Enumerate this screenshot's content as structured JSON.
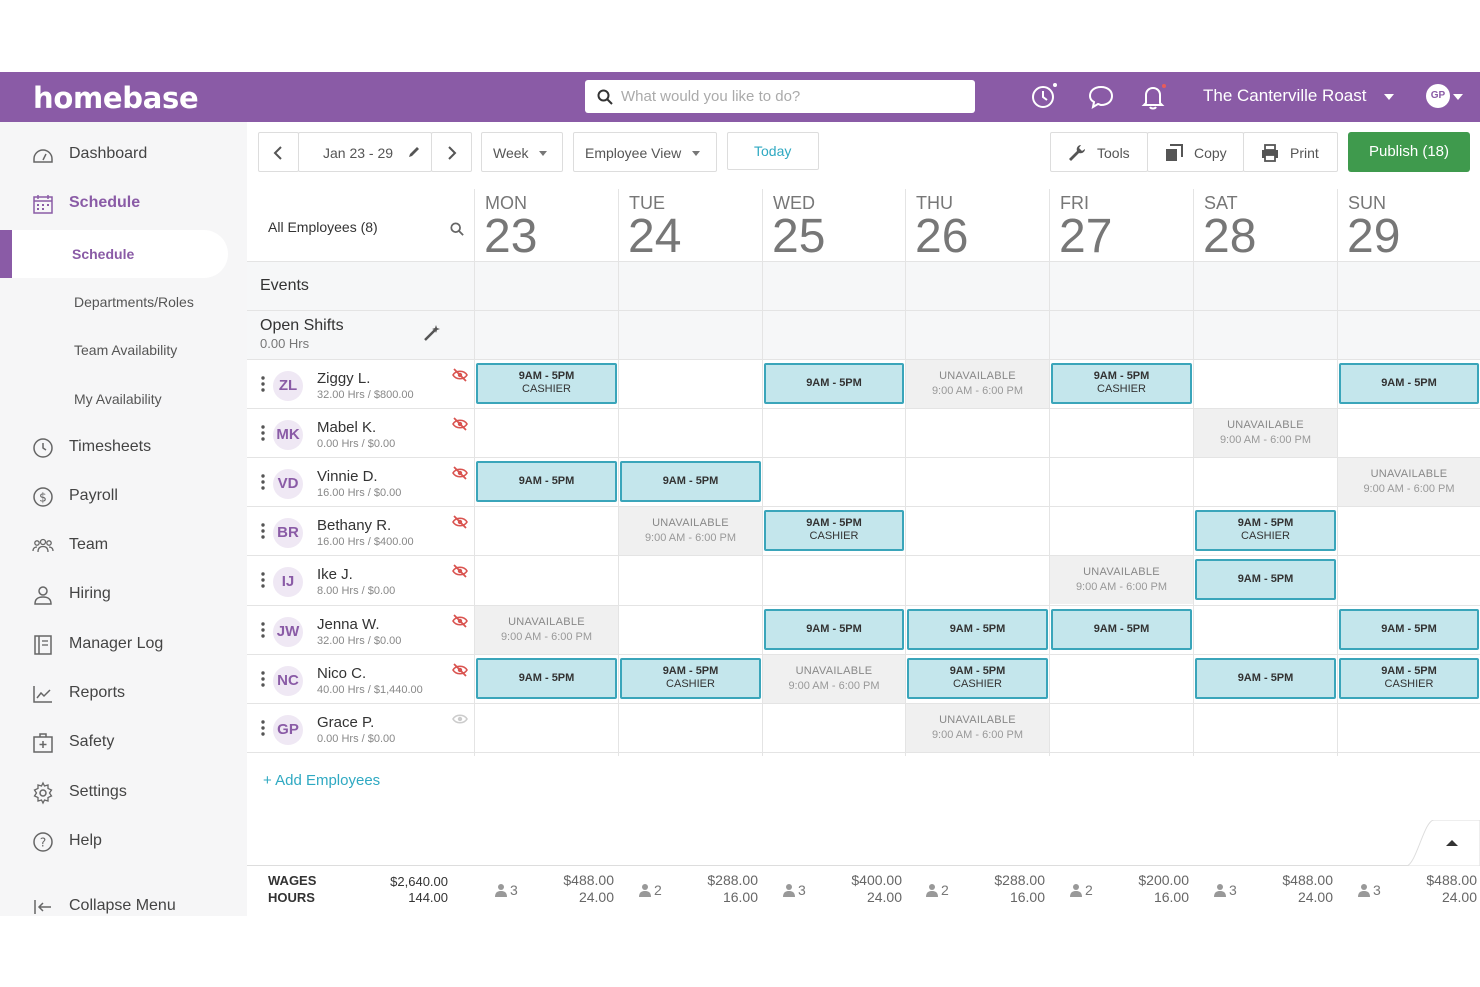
{
  "app": {
    "logo": "homebase"
  },
  "topbar": {
    "search_placeholder": "What would you like to do?",
    "location": "The Canterville Roast",
    "avatar_initials": "GP",
    "icons": [
      "clock-icon",
      "chat-icon",
      "bell-icon"
    ]
  },
  "sidebar": {
    "items": [
      {
        "label": "Dashboard",
        "icon": "dashboard-icon"
      },
      {
        "label": "Schedule",
        "icon": "calendar-icon"
      },
      {
        "label": "Timesheets",
        "icon": "clock-icon"
      },
      {
        "label": "Payroll",
        "icon": "dollar-icon"
      },
      {
        "label": "Team",
        "icon": "team-icon"
      },
      {
        "label": "Hiring",
        "icon": "person-icon"
      },
      {
        "label": "Manager Log",
        "icon": "logbook-icon"
      },
      {
        "label": "Reports",
        "icon": "chart-icon"
      },
      {
        "label": "Safety",
        "icon": "first-aid-icon"
      },
      {
        "label": "Settings",
        "icon": "gear-icon"
      },
      {
        "label": "Help",
        "icon": "help-icon"
      }
    ],
    "sub_items": [
      "Schedule",
      "Departments/Roles",
      "Team Availability",
      "My Availability"
    ],
    "collapse_label": "Collapse Menu"
  },
  "toolbar": {
    "date_range": "Jan 23 - 29",
    "period": "Week",
    "view": "Employee View",
    "today": "Today",
    "tools": "Tools",
    "copy": "Copy",
    "print": "Print",
    "publish": "Publish (18)"
  },
  "grid": {
    "all_employees": "All Employees (8)",
    "days": [
      {
        "name": "MON",
        "num": "23"
      },
      {
        "name": "TUE",
        "num": "24"
      },
      {
        "name": "WED",
        "num": "25"
      },
      {
        "name": "THU",
        "num": "26"
      },
      {
        "name": "FRI",
        "num": "27"
      },
      {
        "name": "SAT",
        "num": "28"
      },
      {
        "name": "SUN",
        "num": "29"
      }
    ],
    "events_label": "Events",
    "open_shifts_label": "Open Shifts",
    "open_shifts_hours": "0.00 Hrs",
    "employees": [
      {
        "initials": "ZL",
        "name": "Ziggy L.",
        "hours": "32.00 Hrs / $800.00",
        "visible": false
      },
      {
        "initials": "MK",
        "name": "Mabel K.",
        "hours": "0.00 Hrs / $0.00",
        "visible": false
      },
      {
        "initials": "VD",
        "name": "Vinnie D.",
        "hours": "16.00 Hrs / $0.00",
        "visible": false
      },
      {
        "initials": "BR",
        "name": "Bethany R.",
        "hours": "16.00 Hrs / $400.00",
        "visible": false
      },
      {
        "initials": "IJ",
        "name": "Ike J.",
        "hours": "8.00 Hrs / $0.00",
        "visible": false
      },
      {
        "initials": "JW",
        "name": "Jenna W.",
        "hours": "32.00 Hrs / $0.00",
        "visible": false
      },
      {
        "initials": "NC",
        "name": "Nico C.",
        "hours": "40.00 Hrs / $1,440.00",
        "visible": false
      },
      {
        "initials": "GP",
        "name": "Grace P.",
        "hours": "0.00 Hrs / $0.00",
        "visible": true
      }
    ],
    "shift_time": "9AM - 5PM",
    "shift_role": "CASHIER",
    "unavailable_label": "UNAVAILABLE",
    "unavailable_time": "9:00 AM - 6:00 PM",
    "cells": [
      [
        "shift-role",
        "",
        "shift",
        "unavail",
        "shift-role",
        "",
        "shift"
      ],
      [
        "",
        "",
        "",
        "",
        "",
        "unavail",
        ""
      ],
      [
        "shift",
        "shift",
        "",
        "",
        "",
        "",
        "unavail"
      ],
      [
        "",
        "unavail",
        "shift-role",
        "",
        "",
        "shift-role",
        ""
      ],
      [
        "",
        "",
        "",
        "",
        "unavail",
        "shift",
        ""
      ],
      [
        "unavail",
        "",
        "shift",
        "shift",
        "shift",
        "",
        "shift"
      ],
      [
        "shift",
        "shift-role",
        "unavail",
        "shift-role",
        "",
        "shift",
        "shift-role"
      ],
      [
        "",
        "",
        "",
        "unavail",
        "",
        "",
        ""
      ]
    ],
    "add_employees": "+ Add Employees"
  },
  "footer": {
    "wages_label": "WAGES",
    "hours_label": "HOURS",
    "total_wages": "$2,640.00",
    "total_hours": "144.00",
    "days": [
      {
        "count": "3",
        "wages": "$488.00",
        "hours": "24.00"
      },
      {
        "count": "2",
        "wages": "$288.00",
        "hours": "16.00"
      },
      {
        "count": "3",
        "wages": "$400.00",
        "hours": "24.00"
      },
      {
        "count": "2",
        "wages": "$288.00",
        "hours": "16.00"
      },
      {
        "count": "2",
        "wages": "$200.00",
        "hours": "16.00"
      },
      {
        "count": "3",
        "wages": "$488.00",
        "hours": "24.00"
      },
      {
        "count": "3",
        "wages": "$488.00",
        "hours": "24.00"
      }
    ]
  },
  "colors": {
    "brand": "#8a5ba6",
    "shift_bg": "#c4e6ec",
    "shift_border": "#3aa5ba",
    "publish": "#3f9a4d",
    "link": "#2fa9c2"
  }
}
